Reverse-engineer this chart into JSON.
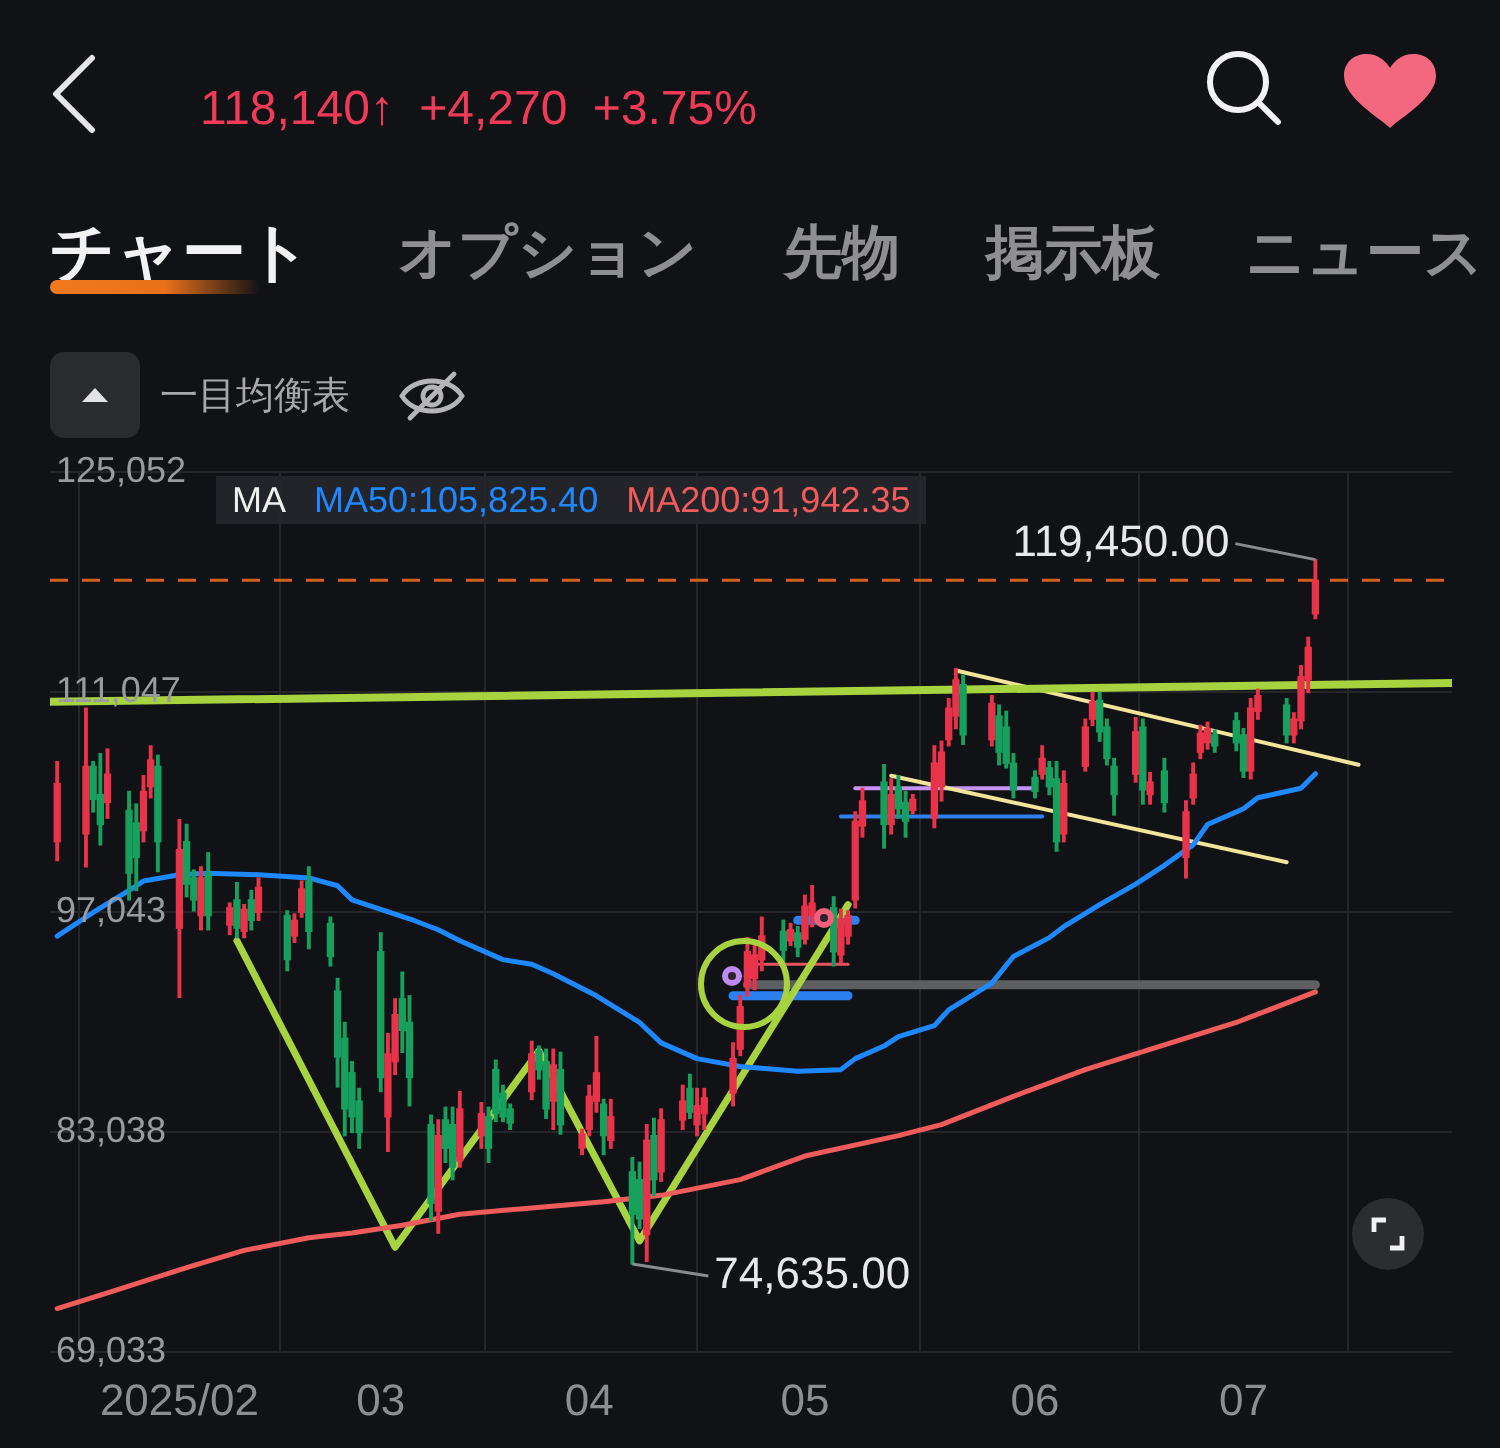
{
  "chart_data": {
    "type": "candlestick",
    "subtitle": "118,140↑ +4,270 +3.75%",
    "annotations": [
      "チャート",
      "オプション",
      "先物",
      "掲示板",
      "ニュース",
      "一目均衡表",
      {
        "text": "119,450.00",
        "x": "2025-07-11",
        "y": 119450
      },
      {
        "text": "74,635.00",
        "x": "2025-04-07",
        "y": 74635
      }
    ],
    "x": [
      "2025-01-17",
      "2025-01-21",
      "2025-01-22",
      "2025-01-23",
      "2025-01-24",
      "2025-01-27",
      "2025-01-28",
      "2025-01-29",
      "2025-01-30",
      "2025-01-31",
      "2025-02-03",
      "2025-02-04",
      "2025-02-05",
      "2025-02-06",
      "2025-02-07",
      "2025-02-10",
      "2025-02-11",
      "2025-02-12",
      "2025-02-13",
      "2025-02-14",
      "2025-02-18",
      "2025-02-19",
      "2025-02-20",
      "2025-02-21",
      "2025-02-24",
      "2025-02-25",
      "2025-02-26",
      "2025-02-27",
      "2025-02-28",
      "2025-03-03",
      "2025-03-04",
      "2025-03-05",
      "2025-03-06",
      "2025-03-07",
      "2025-03-10",
      "2025-03-11",
      "2025-03-12",
      "2025-03-13",
      "2025-03-14",
      "2025-03-17",
      "2025-03-18",
      "2025-03-19",
      "2025-03-20",
      "2025-03-21",
      "2025-03-24",
      "2025-03-25",
      "2025-03-26",
      "2025-03-27",
      "2025-03-28",
      "2025-03-31",
      "2025-04-01",
      "2025-04-02",
      "2025-04-03",
      "2025-04-04",
      "2025-04-07",
      "2025-04-08",
      "2025-04-09",
      "2025-04-10",
      "2025-04-11",
      "2025-04-14",
      "2025-04-15",
      "2025-04-16",
      "2025-04-17",
      "2025-04-21",
      "2025-04-22",
      "2025-04-23",
      "2025-04-24",
      "2025-04-25",
      "2025-04-28",
      "2025-04-29",
      "2025-04-30",
      "2025-05-01",
      "2025-05-02",
      "2025-05-05",
      "2025-05-06",
      "2025-05-07",
      "2025-05-08",
      "2025-05-09",
      "2025-05-12",
      "2025-05-13",
      "2025-05-14",
      "2025-05-15",
      "2025-05-16",
      "2025-05-19",
      "2025-05-20",
      "2025-05-21",
      "2025-05-22",
      "2025-05-23",
      "2025-05-27",
      "2025-05-28",
      "2025-05-29",
      "2025-05-30",
      "2025-06-02",
      "2025-06-03",
      "2025-06-04",
      "2025-06-05",
      "2025-06-06",
      "2025-06-09",
      "2025-06-10",
      "2025-06-11",
      "2025-06-12",
      "2025-06-13",
      "2025-06-16",
      "2025-06-17",
      "2025-06-18",
      "2025-06-20",
      "2025-06-23",
      "2025-06-24",
      "2025-06-25",
      "2025-06-26",
      "2025-06-27",
      "2025-06-30",
      "2025-07-01",
      "2025-07-02",
      "2025-07-03",
      "2025-07-07",
      "2025-07-08",
      "2025-07-09",
      "2025-07-10",
      "2025-07-11"
    ],
    "ohlc": [
      [
        101500,
        106600,
        100300,
        105200
      ],
      [
        102000,
        110000,
        99900,
        106300
      ],
      [
        106300,
        106600,
        103400,
        104200
      ],
      [
        104500,
        107100,
        101300,
        102600
      ],
      [
        104000,
        107400,
        103000,
        105800
      ],
      [
        103500,
        104700,
        97800,
        99500
      ],
      [
        102700,
        103900,
        98400,
        100500
      ],
      [
        102200,
        105700,
        101500,
        104700
      ],
      [
        105000,
        107600,
        104300,
        106700
      ],
      [
        106300,
        107000,
        99600,
        101500
      ],
      [
        96000,
        102900,
        91600,
        101000
      ],
      [
        101500,
        102600,
        98000,
        98800
      ],
      [
        99200,
        99700,
        97100,
        97800
      ],
      [
        96800,
        99900,
        95900,
        99200
      ],
      [
        99500,
        100800,
        95900,
        96800
      ],
      [
        96200,
        97600,
        95600,
        97300
      ],
      [
        97800,
        98900,
        95400,
        96000
      ],
      [
        95800,
        97500,
        95400,
        97200
      ],
      [
        97800,
        98400,
        95900,
        96500
      ],
      [
        97000,
        99200,
        96500,
        98600
      ],
      [
        96800,
        97100,
        93300,
        94000
      ],
      [
        95500,
        96900,
        95100,
        96500
      ],
      [
        97000,
        99000,
        96700,
        98500
      ],
      [
        99000,
        99900,
        94700,
        95800
      ],
      [
        96300,
        96700,
        93600,
        94200
      ],
      [
        92000,
        92800,
        85900,
        87800
      ],
      [
        89000,
        90000,
        82800,
        84500
      ],
      [
        86800,
        87500,
        83000,
        84000
      ],
      [
        85000,
        85800,
        82000,
        83000
      ],
      [
        94500,
        95700,
        85600,
        86500
      ],
      [
        84000,
        89300,
        81800,
        88000
      ],
      [
        87500,
        91500,
        86700,
        90500
      ],
      [
        91500,
        93200,
        88100,
        89500
      ],
      [
        90000,
        91700,
        84700,
        86500
      ],
      [
        83500,
        84100,
        77400,
        78500
      ],
      [
        78000,
        83800,
        76600,
        82800
      ],
      [
        83800,
        84600,
        81100,
        82000
      ],
      [
        83500,
        84600,
        80000,
        80800
      ],
      [
        81200,
        85600,
        80800,
        84500
      ],
      [
        82800,
        84900,
        82000,
        84200
      ],
      [
        84000,
        84600,
        81100,
        82000
      ],
      [
        87000,
        87600,
        83700,
        84200
      ],
      [
        85500,
        86000,
        83700,
        84000
      ],
      [
        84500,
        84800,
        83200,
        83600
      ],
      [
        85600,
        88800,
        85100,
        88000
      ],
      [
        88200,
        88500,
        86400,
        87000
      ],
      [
        87500,
        88300,
        83900,
        84500
      ],
      [
        85000,
        88300,
        83200,
        87300
      ],
      [
        87000,
        88100,
        82900,
        83500
      ],
      [
        82000,
        83200,
        81600,
        82900
      ],
      [
        83200,
        86000,
        82800,
        85300
      ],
      [
        85000,
        89100,
        84300,
        86800
      ],
      [
        84800,
        85100,
        81600,
        82800
      ],
      [
        82500,
        85100,
        82000,
        84000
      ],
      [
        80500,
        81400,
        74635,
        77800
      ],
      [
        80000,
        81100,
        76900,
        77500
      ],
      [
        76500,
        83500,
        74800,
        82500
      ],
      [
        82800,
        83900,
        79000,
        80000
      ],
      [
        80500,
        84500,
        79900,
        83800
      ],
      [
        83800,
        86000,
        83200,
        85000
      ],
      [
        85800,
        86700,
        83900,
        84300
      ],
      [
        83500,
        85800,
        82800,
        84700
      ],
      [
        84200,
        85800,
        83200,
        85200
      ],
      [
        85500,
        88700,
        84700,
        87700
      ],
      [
        88300,
        91700,
        87900,
        91000
      ],
      [
        92300,
        95400,
        91700,
        94500
      ],
      [
        92800,
        95000,
        92100,
        94300
      ],
      [
        94000,
        96700,
        93300,
        95500
      ],
      [
        95800,
        96500,
        93800,
        94600
      ],
      [
        95200,
        96300,
        94900,
        95900
      ],
      [
        95700,
        96100,
        94200,
        94800
      ],
      [
        95300,
        98100,
        95000,
        97400
      ],
      [
        96800,
        98700,
        96100,
        97600
      ],
      [
        97300,
        98000,
        93600,
        94500
      ],
      [
        94300,
        97200,
        93800,
        96600
      ],
      [
        95500,
        97100,
        95000,
        96800
      ],
      [
        97800,
        103400,
        97300,
        102800
      ],
      [
        102500,
        104900,
        101800,
        104100
      ],
      [
        105300,
        106400,
        101100,
        102600
      ],
      [
        102600,
        105500,
        102000,
        104500
      ],
      [
        105000,
        105700,
        103000,
        103600
      ],
      [
        104000,
        104700,
        101800,
        102800
      ],
      [
        103500,
        104500,
        103300,
        104200
      ],
      [
        103000,
        107600,
        102400,
        106500
      ],
      [
        105000,
        107900,
        104100,
        107200
      ],
      [
        108000,
        110600,
        107600,
        110000
      ],
      [
        109500,
        112500,
        108700,
        111800
      ],
      [
        111500,
        112100,
        107700,
        108300
      ],
      [
        108000,
        110800,
        107600,
        110300
      ],
      [
        109500,
        110200,
        106400,
        107200
      ],
      [
        108800,
        109800,
        106200,
        106500
      ],
      [
        106500,
        107100,
        104300,
        104800
      ],
      [
        105600,
        106000,
        104300,
        104700
      ],
      [
        105800,
        107600,
        105500,
        106800
      ],
      [
        106200,
        106600,
        104500,
        105000
      ],
      [
        105500,
        106600,
        100900,
        101500
      ],
      [
        102000,
        106000,
        101500,
        105200
      ],
      [
        106300,
        109300,
        106000,
        108800
      ],
      [
        109300,
        111000,
        108900,
        110400
      ],
      [
        110500,
        111000,
        107900,
        108500
      ],
      [
        108800,
        109300,
        106400,
        106800
      ],
      [
        106300,
        106800,
        103200,
        104500
      ],
      [
        105800,
        109400,
        105300,
        108500
      ],
      [
        108800,
        109300,
        103900,
        104800
      ],
      [
        104500,
        105900,
        103900,
        105300
      ],
      [
        106000,
        106800,
        103400,
        104000
      ],
      [
        100500,
        104100,
        99200,
        103400
      ],
      [
        104300,
        106500,
        103900,
        105800
      ],
      [
        107200,
        108900,
        106800,
        108400
      ],
      [
        107800,
        109100,
        107400,
        108700
      ],
      [
        108300,
        108600,
        107200,
        107600
      ],
      [
        109200,
        109700,
        107300,
        107800
      ],
      [
        108300,
        108700,
        105600,
        106000
      ],
      [
        106000,
        110600,
        105500,
        110000
      ],
      [
        109800,
        111200,
        109300,
        110800
      ],
      [
        110200,
        110600,
        107800,
        108300
      ],
      [
        108300,
        109700,
        107800,
        109300
      ],
      [
        109200,
        112700,
        108700,
        112000
      ],
      [
        111800,
        114500,
        111000,
        113870
      ],
      [
        116000,
        119450,
        115700,
        118140
      ]
    ],
    "colors": [
      "#e8334a",
      "#e8334a",
      "#17a05d",
      "#17a05d",
      "#e8334a",
      "#17a05d",
      "#17a05d",
      "#e8334a",
      "#e8334a",
      "#17a05d",
      "#e8334a",
      "#17a05d",
      "#17a05d",
      "#e8334a",
      "#17a05d",
      "#e8334a",
      "#17a05d",
      "#e8334a",
      "#17a05d",
      "#e8334a",
      "#17a05d",
      "#e8334a",
      "#e8334a",
      "#17a05d",
      "#17a05d",
      "#17a05d",
      "#17a05d",
      "#17a05d",
      "#17a05d",
      "#17a05d",
      "#e8334a",
      "#e8334a",
      "#17a05d",
      "#17a05d",
      "#17a05d",
      "#e8334a",
      "#17a05d",
      "#17a05d",
      "#e8334a",
      "#e8334a",
      "#17a05d",
      "#17a05d",
      "#17a05d",
      "#17a05d",
      "#e8334a",
      "#17a05d",
      "#17a05d",
      "#e8334a",
      "#17a05d",
      "#e8334a",
      "#e8334a",
      "#e8334a",
      "#17a05d",
      "#e8334a",
      "#17a05d",
      "#17a05d",
      "#e8334a",
      "#17a05d",
      "#e8334a",
      "#e8334a",
      "#17a05d",
      "#e8334a",
      "#e8334a",
      "#e8334a",
      "#e8334a",
      "#e8334a",
      "#e8334a",
      "#e8334a",
      "#17a05d",
      "#e8334a",
      "#17a05d",
      "#e8334a",
      "#e8334a",
      "#17a05d",
      "#e8334a",
      "#e8334a",
      "#e8334a",
      "#e8334a",
      "#17a05d",
      "#e8334a",
      "#17a05d",
      "#17a05d",
      "#e8334a",
      "#e8334a",
      "#e8334a",
      "#e8334a",
      "#e8334a",
      "#17a05d",
      "#e8334a",
      "#17a05d",
      "#17a05d",
      "#17a05d",
      "#17a05d",
      "#e8334a",
      "#17a05d",
      "#17a05d",
      "#e8334a",
      "#e8334a",
      "#e8334a",
      "#17a05d",
      "#17a05d",
      "#17a05d",
      "#e8334a",
      "#17a05d",
      "#e8334a",
      "#17a05d",
      "#e8334a",
      "#e8334a",
      "#e8334a",
      "#e8334a",
      "#17a05d",
      "#17a05d",
      "#17a05d",
      "#e8334a",
      "#e8334a",
      "#17a05d",
      "#e8334a",
      "#e8334a",
      "#e8334a",
      "#e8334a"
    ],
    "series": [
      {
        "type": "line",
        "name": "MA50:105,825.40",
        "color": "#1e88ff",
        "x": [
          "2025-01-17",
          "2025-01-22",
          "2025-01-27",
          "2025-01-29",
          "2025-02-03",
          "2025-02-07",
          "2025-02-14",
          "2025-02-21",
          "2025-02-25",
          "2025-02-27",
          "2025-03-03",
          "2025-03-07",
          "2025-03-11",
          "2025-03-14",
          "2025-03-20",
          "2025-03-24",
          "2025-03-27",
          "2025-04-02",
          "2025-04-08",
          "2025-04-11",
          "2025-04-16",
          "2025-04-22",
          "2025-04-30",
          "2025-05-06",
          "2025-05-08",
          "2025-05-12",
          "2025-05-14",
          "2025-05-19",
          "2025-05-21",
          "2025-05-27",
          "2025-05-30",
          "2025-06-04",
          "2025-06-06",
          "2025-06-11",
          "2025-06-16",
          "2025-06-20",
          "2025-06-24",
          "2025-06-26",
          "2025-07-01",
          "2025-07-03",
          "2025-07-09",
          "2025-07-11"
        ],
        "values": [
          95500,
          97000,
          98400,
          99000,
          99400,
          99500,
          99400,
          99200,
          98700,
          97800,
          97200,
          96600,
          95900,
          95200,
          94000,
          93700,
          93100,
          91700,
          90000,
          88700,
          87700,
          87200,
          86900,
          87000,
          87700,
          88500,
          89100,
          89800,
          90800,
          92500,
          94200,
          95400,
          96100,
          97500,
          98800,
          100000,
          101300,
          102600,
          103600,
          104300,
          104900,
          105825.4
        ]
      },
      {
        "type": "line",
        "name": "MA200:91,942.35",
        "color": "#f05b5b",
        "x": [
          "2025-01-17",
          "2025-01-24",
          "2025-02-04",
          "2025-02-12",
          "2025-02-21",
          "2025-02-27",
          "2025-03-06",
          "2025-03-14",
          "2025-03-24",
          "2025-04-03",
          "2025-04-11",
          "2025-04-22",
          "2025-05-01",
          "2025-05-14",
          "2025-05-20",
          "2025-05-30",
          "2025-06-09",
          "2025-06-23",
          "2025-06-30",
          "2025-07-11"
        ],
        "values": [
          71800,
          72800,
          74400,
          75500,
          76300,
          76600,
          77100,
          77800,
          78200,
          78600,
          79000,
          80000,
          81500,
          82800,
          83500,
          85300,
          87000,
          89000,
          90000,
          91942.35
        ]
      },
      {
        "type": "line",
        "color": "#a6d33f",
        "x": [
          "2025-01-16",
          "2025-07-30"
        ],
        "values": [
          110400,
          111600
        ]
      },
      {
        "type": "line",
        "color": "#a6d33f",
        "x": [
          "2025-02-11",
          "2025-03-05",
          "2025-03-25",
          "2025-04-08",
          "2025-05-07"
        ],
        "values": [
          95200,
          75700,
          88200,
          76100,
          97500
        ]
      },
      {
        "type": "line",
        "color": "#f3e49c",
        "x": [
          "2025-05-22",
          "2025-07-17"
        ],
        "values": [
          112400,
          106400
        ]
      },
      {
        "type": "line",
        "color": "#f3e49c",
        "x": [
          "2025-05-13",
          "2025-07-07"
        ],
        "values": [
          105700,
          100200
        ]
      },
      {
        "type": "line",
        "color": "#c792f5",
        "x": [
          "2025-05-08",
          "2025-06-02"
        ],
        "values": [
          104900,
          104900
        ]
      },
      {
        "type": "line",
        "color": "#2d7ff0",
        "x": [
          "2025-05-06",
          "2025-06-03"
        ],
        "values": [
          103100,
          103100
        ]
      },
      {
        "type": "line",
        "color": "#2d7ff0",
        "x": [
          "2025-04-21",
          "2025-05-07"
        ],
        "values": [
          91700,
          91700
        ]
      },
      {
        "type": "line",
        "color": "#2d7ff0",
        "x": [
          "2025-04-30",
          "2025-05-08"
        ],
        "values": [
          96500,
          96500
        ]
      },
      {
        "type": "line",
        "color": "#e5545f",
        "x": [
          "2025-04-23",
          "2025-05-07"
        ],
        "values": [
          93700,
          93700
        ]
      },
      {
        "type": "line",
        "color": "#5e5f62",
        "x": [
          "2025-04-23",
          "2025-07-11"
        ],
        "values": [
          92400,
          92400
        ]
      }
    ],
    "legend": "top left",
    "legend_title": "MA",
    "xlim": [
      "2025-01-16",
      "2025-07-30"
    ],
    "xticks": [
      {
        "value": "2025-02-03",
        "label": "2025/02"
      },
      {
        "value": "2025-03-03",
        "label": "03"
      },
      {
        "value": "2025-04-01",
        "label": "04"
      },
      {
        "value": "2025-05-01",
        "label": "05"
      },
      {
        "value": "2025-06-02",
        "label": "06"
      },
      {
        "value": "2025-07-01",
        "label": "07"
      }
    ],
    "ylim": [
      69033,
      125052
    ],
    "yticks": [
      {
        "value": 69033,
        "label": "69,033"
      },
      {
        "value": 83038,
        "label": "83,038"
      },
      {
        "value": 97043,
        "label": "97,043"
      },
      {
        "value": 111047,
        "label": "111,047"
      },
      {
        "value": 125052,
        "label": "125,052"
      }
    ],
    "grid": true,
    "ref_lines": [
      {
        "axis": "y",
        "value": 118140,
        "color": "#d4601c",
        "line_style": "dashed"
      }
    ]
  }
}
